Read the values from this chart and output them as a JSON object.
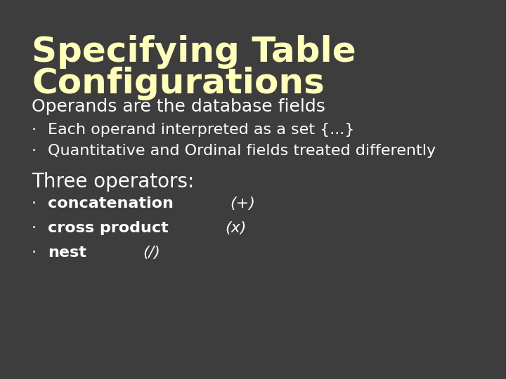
{
  "background_color": "#3d3d3d",
  "title_line1": "Specifying Table",
  "title_line2": "Configurations",
  "title_color": "#ffffbb",
  "title_fontsize": 36,
  "subtitle": "Operands are the database fields",
  "subtitle_color": "#ffffff",
  "subtitle_fontsize": 18,
  "bullet_color": "#ffffff",
  "bullet_fontsize": 16,
  "bullet_symbol": "·",
  "bullets1": [
    "Each operand interpreted as a set {...}",
    "Quantitative and Ordinal fields treated differently"
  ],
  "section2_header": "Three operators:",
  "section2_header_color": "#ffffff",
  "section2_header_fontsize": 20,
  "bold_words": [
    "concatenation",
    "cross product",
    "nest"
  ],
  "paren_words": [
    "(+)",
    "(x)",
    "(/)"
  ]
}
